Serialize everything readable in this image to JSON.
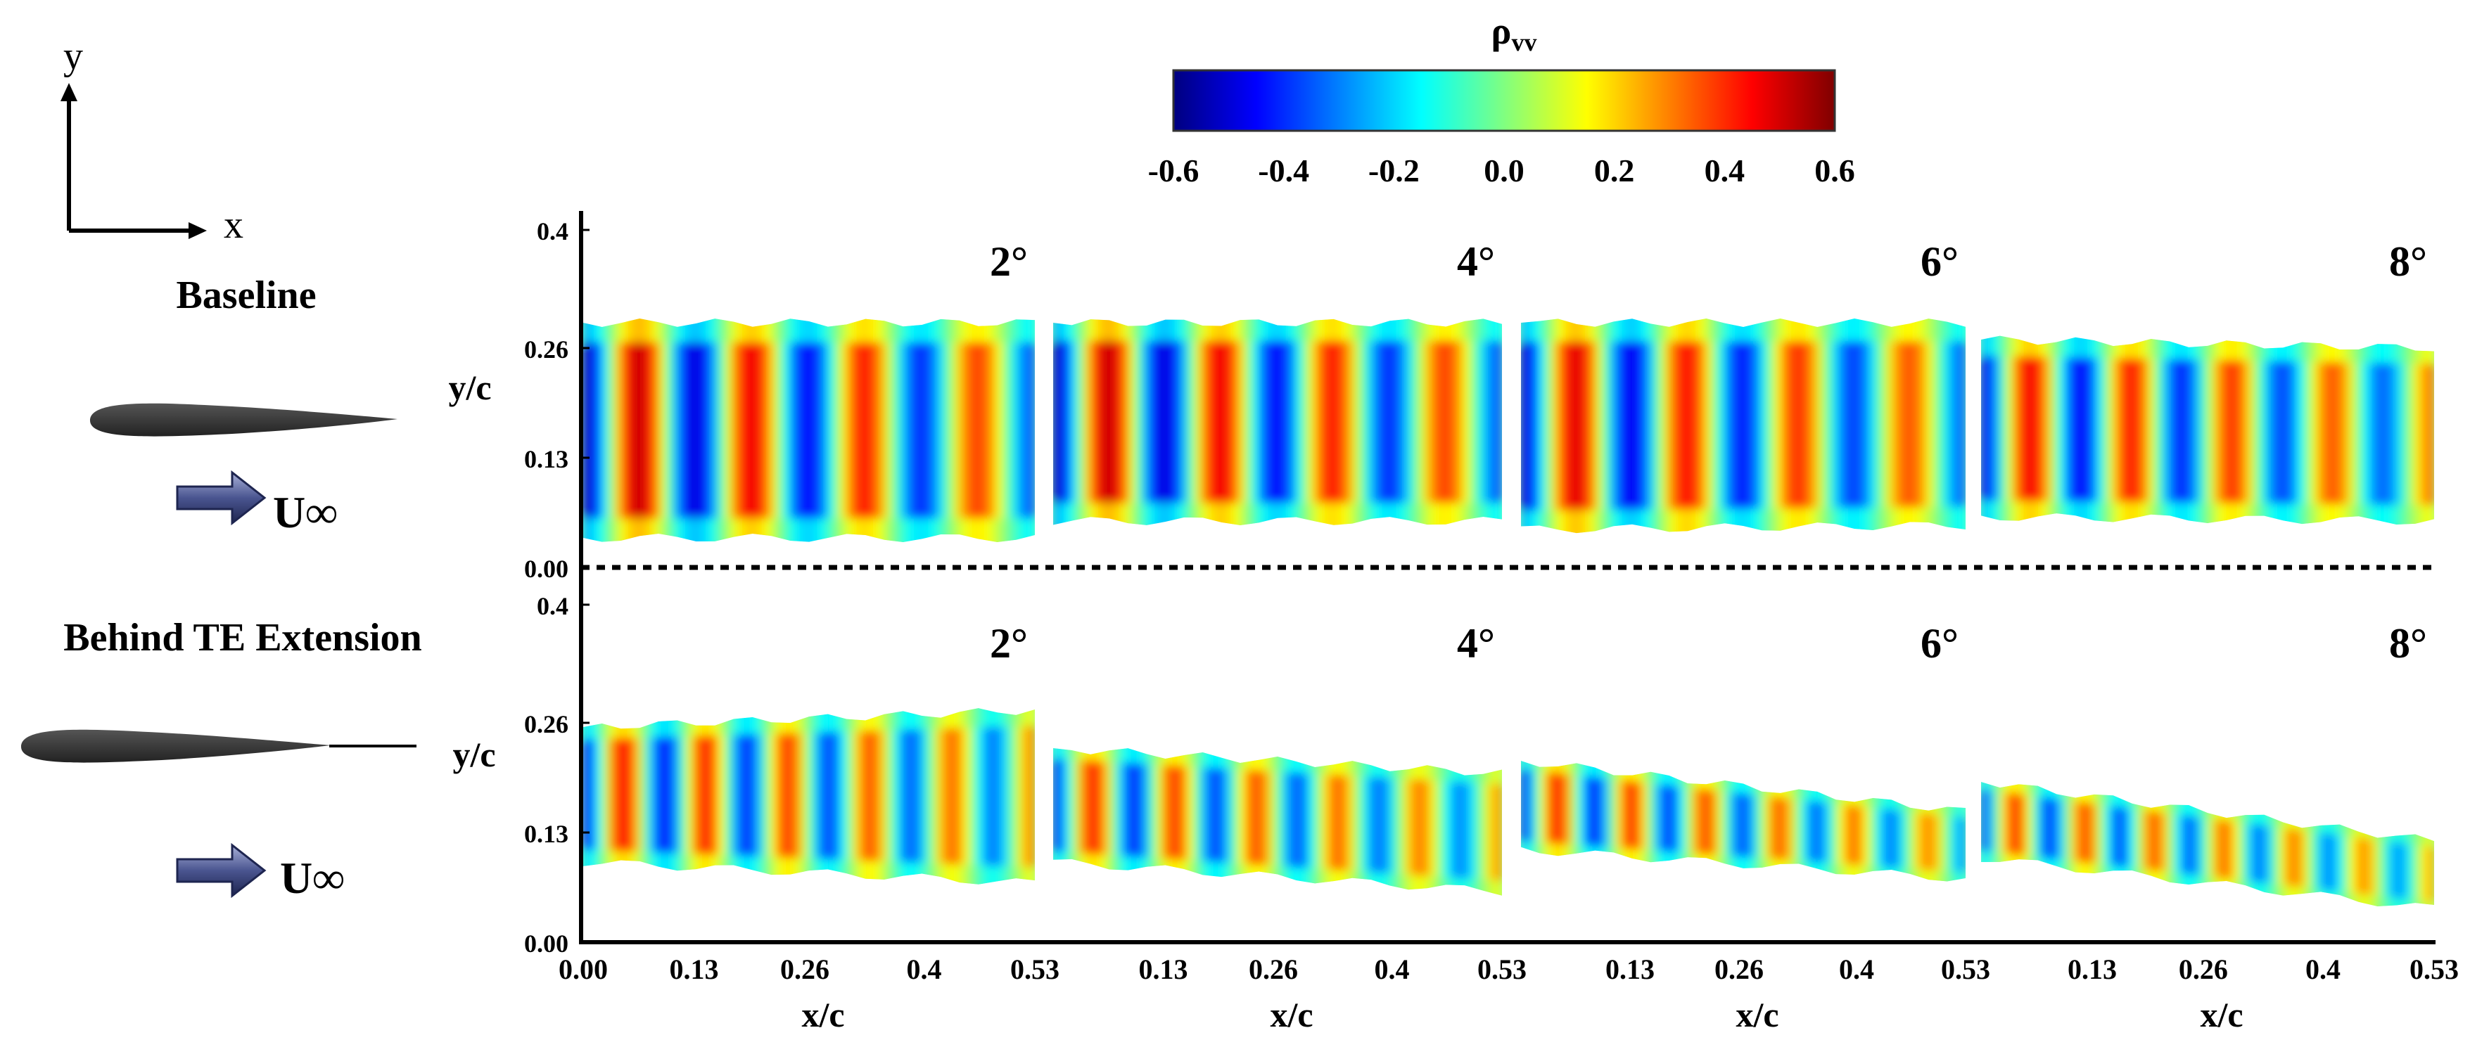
{
  "colorbar": {
    "title": "ρ",
    "title_subscript": "vv",
    "ticks": [
      "-0.6",
      "-0.4",
      "-0.2",
      "0.0",
      "0.2",
      "0.4",
      "0.6"
    ],
    "min": -0.6,
    "max": 0.6,
    "colormap": [
      "#00007f",
      "#0000ff",
      "#0080ff",
      "#00ffff",
      "#80ff80",
      "#ffff00",
      "#ff8000",
      "#ff0000",
      "#7f0000"
    ]
  },
  "axes_glyph": {
    "x_label": "x",
    "y_label": "y"
  },
  "rows": [
    {
      "label": "Baseline",
      "flow_label": "U∞",
      "has_extension": false
    },
    {
      "label": "Behind TE Extension",
      "flow_label": "U∞",
      "has_extension": true
    }
  ],
  "chart_data": {
    "type": "heatmap",
    "title": "ρvv",
    "xlabel": "x/c",
    "ylabel": "y/c",
    "x_ticks": [
      "0.00",
      "0.13",
      "0.26",
      "0.4",
      "0.53"
    ],
    "x_ticks_other_panels": [
      "0.13",
      "0.26",
      "0.4",
      "0.53"
    ],
    "y_ticks": [
      "0.4",
      "0.26",
      "0.13",
      "0.00"
    ],
    "xlim": [
      0,
      0.53
    ],
    "ylim": [
      0,
      0.4
    ],
    "separator_y": 0.0,
    "panels": [
      {
        "row": "Baseline",
        "angle": "2°",
        "stripes": 8,
        "amplitude": 0.9,
        "band_top": [
          0.29,
          0.29
        ],
        "band_bottom": [
          0.035,
          0.035
        ],
        "phase": 0
      },
      {
        "row": "Baseline",
        "angle": "4°",
        "stripes": 8,
        "amplitude": 0.9,
        "band_top": [
          0.29,
          0.29
        ],
        "band_bottom": [
          0.055,
          0.055
        ],
        "phase": 0
      },
      {
        "row": "Baseline",
        "angle": "6°",
        "stripes": 8,
        "amplitude": 0.85,
        "band_top": [
          0.29,
          0.29
        ],
        "band_bottom": [
          0.045,
          0.05
        ],
        "phase": 0
      },
      {
        "row": "Baseline",
        "angle": "8°",
        "stripes": 9,
        "amplitude": 0.8,
        "band_top": [
          0.27,
          0.26
        ],
        "band_bottom": [
          0.06,
          0.055
        ],
        "phase": 0
      },
      {
        "row": "Behind TE Extension",
        "angle": "2°",
        "stripes": 11,
        "amplitude": 0.75,
        "band_top": [
          0.255,
          0.275
        ],
        "band_bottom": [
          0.095,
          0.07
        ],
        "phase": 0
      },
      {
        "row": "Behind TE Extension",
        "angle": "4°",
        "stripes": 11,
        "amplitude": 0.7,
        "band_top": [
          0.23,
          0.2
        ],
        "band_bottom": [
          0.095,
          0.06
        ],
        "phase": 0
      },
      {
        "row": "Behind TE Extension",
        "angle": "6°",
        "stripes": 12,
        "amplitude": 0.7,
        "band_top": [
          0.215,
          0.155
        ],
        "band_bottom": [
          0.11,
          0.075
        ],
        "phase": 0
      },
      {
        "row": "Behind TE Extension",
        "angle": "8°",
        "stripes": 13,
        "amplitude": 0.65,
        "band_top": [
          0.19,
          0.12
        ],
        "band_bottom": [
          0.1,
          0.04
        ],
        "phase": 0
      }
    ]
  }
}
